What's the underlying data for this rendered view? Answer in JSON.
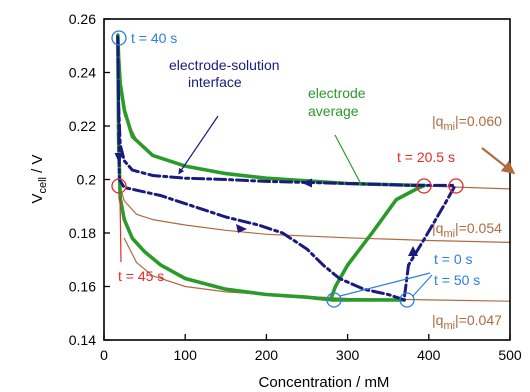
{
  "colors": {
    "green": "#2a9a2a",
    "navy": "#1a1a80",
    "brown": "#b06a40",
    "red": "#e22b2b",
    "blue": "#2a7fe0"
  },
  "chart_data": {
    "type": "line",
    "xlabel": "Concentration / mM",
    "ylabel": "V",
    "ylabel_sub": "cell",
    "ylabel_prefix": "V",
    "ylabel_suffix": " / V",
    "xlim": [
      0,
      500
    ],
    "ylim": [
      0.14,
      0.26
    ],
    "xticks": [
      "0",
      "100",
      "200",
      "300",
      "400",
      "500"
    ],
    "yticks": [
      "0.14",
      "0.16",
      "0.18",
      "0.2",
      "0.22",
      "0.24",
      "0.26"
    ],
    "annotations": {
      "t40": "t = 40 s",
      "t20": "t = 20.5 s",
      "t45": "t = 45 s",
      "t0": "t = 0 s",
      "t50": "t = 50 s",
      "interface_line1": "electrode-solution",
      "interface_line2": "interface",
      "avg_line1": "electrode",
      "avg_line2": "average",
      "q_prefix": "|q",
      "q_sub": "mi",
      "q1": "|=0.060",
      "q2": "|=0.054",
      "q3": "|=0.047"
    },
    "series": [
      {
        "style": "green-thick",
        "x": [
          370,
          282,
          250,
          200,
          150,
          100,
          70,
          50,
          35,
          25,
          20,
          18,
          17,
          18,
          20,
          25,
          35,
          60,
          100,
          150,
          200,
          300,
          390,
          395,
          385,
          360,
          330,
          300,
          285,
          280
        ],
        "y": [
          0.155,
          0.155,
          0.156,
          0.157,
          0.159,
          0.163,
          0.168,
          0.173,
          0.178,
          0.185,
          0.193,
          0.215,
          0.254,
          0.246,
          0.236,
          0.226,
          0.216,
          0.209,
          0.205,
          0.2022,
          0.2005,
          0.1985,
          0.1978,
          0.1978,
          0.1965,
          0.1925,
          0.18,
          0.168,
          0.16,
          0.156
        ]
      },
      {
        "style": "navy-dashdot",
        "x": [
          370,
          350,
          320,
          290,
          270,
          250,
          220,
          190,
          150,
          110,
          70,
          40,
          25,
          19,
          17,
          18,
          20,
          25,
          35,
          60,
          100,
          150,
          200,
          300,
          380,
          430,
          432,
          420,
          395,
          375,
          370
        ],
        "y": [
          0.155,
          0.157,
          0.159,
          0.163,
          0.168,
          0.174,
          0.18,
          0.183,
          0.186,
          0.19,
          0.194,
          0.196,
          0.197,
          0.2,
          0.254,
          0.228,
          0.213,
          0.207,
          0.2035,
          0.2015,
          0.2005,
          0.2,
          0.1993,
          0.1985,
          0.1978,
          0.1978,
          0.1975,
          0.191,
          0.178,
          0.168,
          0.156
        ]
      },
      {
        "style": "brown-thin",
        "x": [
          18,
          25,
          40,
          60,
          100,
          150,
          200,
          300,
          400,
          500
        ],
        "y": [
          0.238,
          0.224,
          0.215,
          0.209,
          0.205,
          0.202,
          0.2005,
          0.1985,
          0.1975,
          0.1965
        ]
      },
      {
        "style": "brown-thin",
        "x": [
          18,
          25,
          40,
          60,
          100,
          150,
          200,
          300,
          400,
          500
        ],
        "y": [
          0.199,
          0.192,
          0.187,
          0.185,
          0.183,
          0.181,
          0.1795,
          0.1782,
          0.1772,
          0.1765
        ]
      },
      {
        "style": "brown-thin",
        "x": [
          25,
          40,
          60,
          100,
          150,
          200,
          300,
          400,
          500
        ],
        "y": [
          0.178,
          0.169,
          0.164,
          0.16,
          0.158,
          0.157,
          0.1555,
          0.155,
          0.1545
        ]
      }
    ]
  }
}
